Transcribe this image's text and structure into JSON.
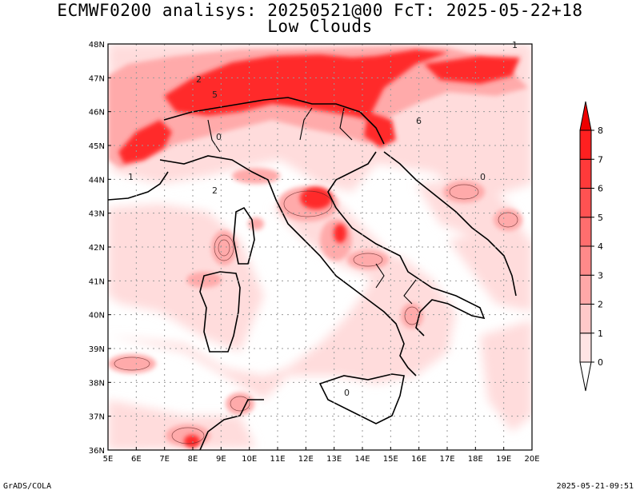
{
  "title": {
    "line1": "ECMWF0200 analisys: 20250521@00 FcT: 2025-05-22+18",
    "line2": "Low Clouds"
  },
  "footer": {
    "left": "GrADS/COLA",
    "right": "2025-05-21-09:51"
  },
  "map": {
    "lon_labels": [
      "5E",
      "6E",
      "7E",
      "8E",
      "9E",
      "10E",
      "11E",
      "12E",
      "13E",
      "14E",
      "15E",
      "16E",
      "17E",
      "18E",
      "19E",
      "20E"
    ],
    "lat_labels": [
      "36N",
      "37N",
      "38N",
      "39N",
      "40N",
      "41N",
      "42N",
      "43N",
      "44N",
      "45N",
      "46N",
      "47N",
      "48N"
    ],
    "grid": "dotted"
  },
  "colorbar": {
    "levels": [
      "0",
      "1",
      "2",
      "3",
      "4",
      "5",
      "6",
      "7",
      "8"
    ],
    "colors": [
      "#ffe4e4",
      "#ffc9c9",
      "#ffa8a8",
      "#ff8a8a",
      "#ff6e6e",
      "#ff5252",
      "#ff3a3a",
      "#ff2020",
      "#ee0000"
    ]
  },
  "chart_data": {
    "type": "heatmap",
    "title": "ECMWF0200 analisys: 20250521@00 FcT: 2025-05-22+18",
    "subtitle": "Low Clouds",
    "x_ticks": [
      "5E",
      "6E",
      "7E",
      "8E",
      "9E",
      "10E",
      "11E",
      "12E",
      "13E",
      "14E",
      "15E",
      "16E",
      "17E",
      "18E",
      "19E",
      "20E"
    ],
    "y_ticks": [
      "36N",
      "37N",
      "38N",
      "39N",
      "40N",
      "41N",
      "42N",
      "43N",
      "44N",
      "45N",
      "46N",
      "47N",
      "48N"
    ],
    "xlim": [
      5,
      20
    ],
    "ylim": [
      36,
      48
    ],
    "colorbar_levels": [
      0,
      1,
      2,
      3,
      4,
      5,
      6,
      7,
      8
    ],
    "grid": true,
    "contour_labels": [
      "0",
      "1",
      "2",
      "5",
      "6",
      "1",
      "2",
      "0",
      "0"
    ]
  }
}
